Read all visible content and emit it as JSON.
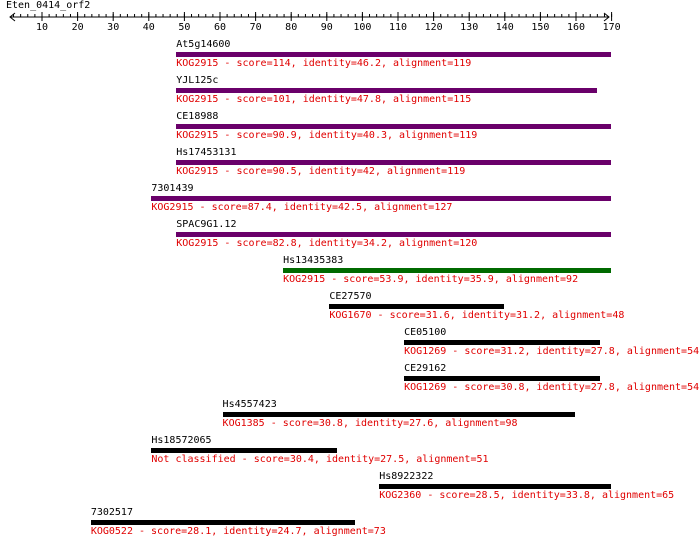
{
  "query": {
    "title": "Eten_0414_orf2",
    "ticks": [
      10,
      20,
      30,
      40,
      50,
      60,
      70,
      80,
      90,
      100,
      110,
      120,
      130,
      140,
      150,
      160,
      170
    ],
    "axis_min": 1,
    "axis_max": 170
  },
  "colors": {
    "strong": "#6a006a",
    "medium": "#006a00",
    "weak": "#000000",
    "desc_text": "#e00000"
  },
  "hits": [
    {
      "name": "At5g14600",
      "start": 48,
      "end": 169,
      "strength": "strong",
      "desc": "KOG2915 - score=114, identity=46.2, alignment=119"
    },
    {
      "name": "YJL125c",
      "start": 48,
      "end": 165,
      "strength": "strong",
      "desc": "KOG2915 - score=101, identity=47.8, alignment=115"
    },
    {
      "name": "CE18988",
      "start": 48,
      "end": 169,
      "strength": "strong",
      "desc": "KOG2915 - score=90.9, identity=40.3, alignment=119"
    },
    {
      "name": "Hs17453131",
      "start": 48,
      "end": 169,
      "strength": "strong",
      "desc": "KOG2915 - score=90.5, identity=42, alignment=119"
    },
    {
      "name": "7301439",
      "start": 41,
      "end": 170,
      "strength": "strong",
      "desc": "KOG2915 - score=87.4, identity=42.5, alignment=127"
    },
    {
      "name": "SPAC9G1.12",
      "start": 48,
      "end": 170,
      "strength": "strong",
      "desc": "KOG2915 - score=82.8, identity=34.2, alignment=120"
    },
    {
      "name": "Hs13435383",
      "start": 78,
      "end": 170,
      "strength": "medium",
      "desc": "KOG2915 - score=53.9, identity=35.9, alignment=92"
    },
    {
      "name": "CE27570",
      "start": 91,
      "end": 139,
      "strength": "weak",
      "desc": "KOG1670 - score=31.6, identity=31.2, alignment=48"
    },
    {
      "name": "CE05100",
      "start": 112,
      "end": 166,
      "strength": "weak",
      "desc": "KOG1269 - score=31.2, identity=27.8, alignment=54"
    },
    {
      "name": "CE29162",
      "start": 112,
      "end": 166,
      "strength": "weak",
      "desc": "KOG1269 - score=30.8, identity=27.8, alignment=54"
    },
    {
      "name": "Hs4557423",
      "start": 61,
      "end": 159,
      "strength": "weak",
      "desc": "KOG1385 - score=30.8, identity=27.6, alignment=98"
    },
    {
      "name": "Hs18572065",
      "start": 41,
      "end": 92,
      "strength": "weak",
      "desc": "Not classified - score=30.4, identity=27.5, alignment=51"
    },
    {
      "name": "Hs8922322",
      "start": 105,
      "end": 170,
      "strength": "weak",
      "desc": "KOG2360 - score=28.5, identity=33.8, alignment=65"
    },
    {
      "name": "7302517",
      "start": 24,
      "end": 97,
      "strength": "weak",
      "desc": "KOG0522 - score=28.1, identity=24.7, alignment=73"
    }
  ]
}
